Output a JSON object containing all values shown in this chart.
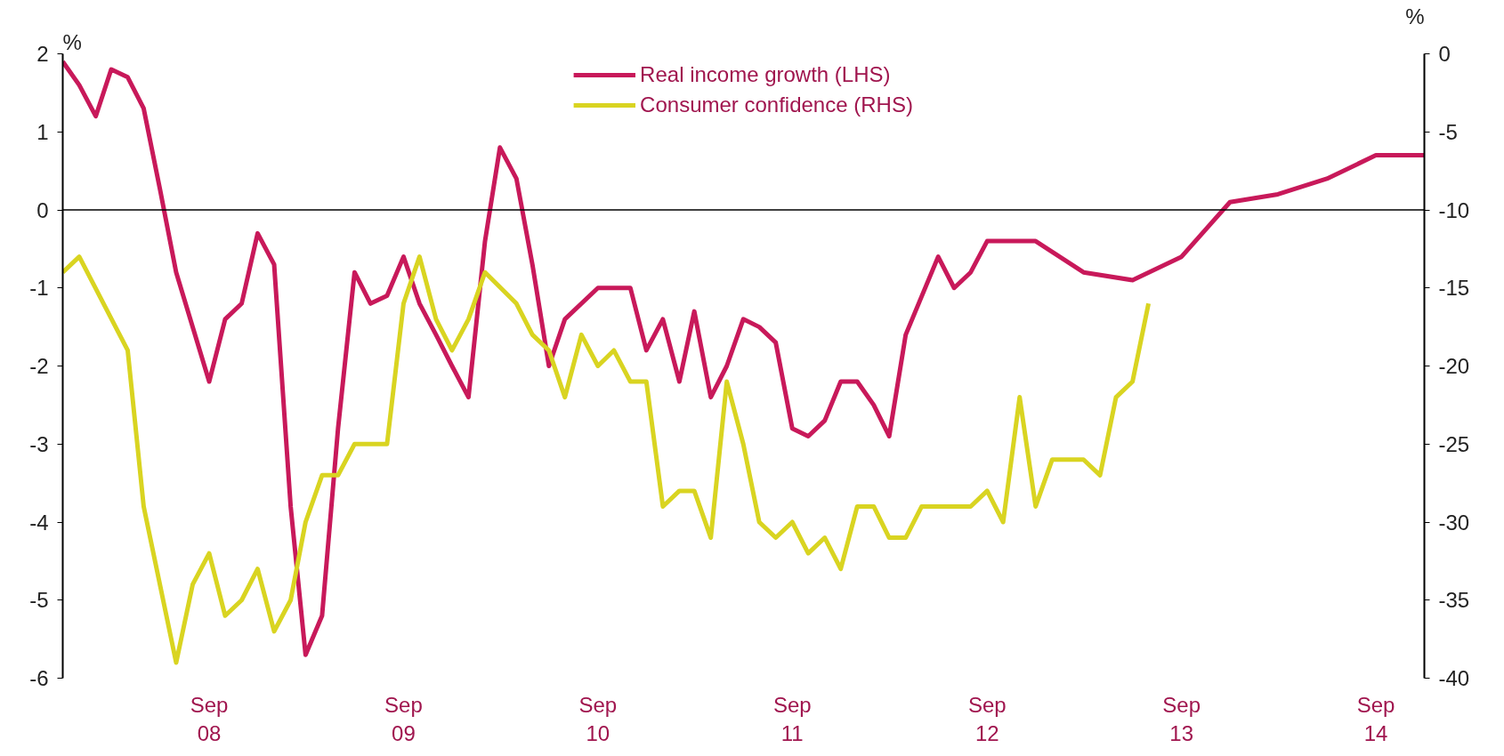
{
  "chart_data": {
    "type": "line",
    "ylabel": "%",
    "y2label": "%",
    "xlim": [
      "2007-12",
      "2014-12"
    ],
    "xticks": [
      {
        "value": "2008-09",
        "label": "Sep\n08"
      },
      {
        "value": "2009-09",
        "label": "Sep\n09"
      },
      {
        "value": "2010-09",
        "label": "Sep\n10"
      },
      {
        "value": "2011-09",
        "label": "Sep\n11"
      },
      {
        "value": "2012-09",
        "label": "Sep\n12"
      },
      {
        "value": "2013-09",
        "label": "Sep\n13"
      },
      {
        "value": "2014-09",
        "label": "Sep\n14"
      }
    ],
    "ylim": [
      -6,
      2
    ],
    "yticks": [
      -6,
      -5,
      -4,
      -3,
      -2,
      -1,
      0,
      1,
      2
    ],
    "y2lim": [
      -40,
      0
    ],
    "y2ticks": [
      -40,
      -35,
      -30,
      -25,
      -20,
      -15,
      -10,
      -5,
      0
    ],
    "grid": false,
    "legend": "top",
    "marker": "none",
    "line_style": "solid",
    "ref_lines": [
      {
        "axis": "y",
        "value": 0,
        "label": null,
        "color": "#000000"
      }
    ],
    "series": [
      {
        "name": "Real income growth (LHS)",
        "color": "#c8195a",
        "x": [
          "2007-12",
          "2008-01",
          "2008-02",
          "2008-03",
          "2008-04",
          "2008-05",
          "2008-06",
          "2008-07",
          "2008-09",
          "2008-10",
          "2008-11",
          "2008-12",
          "2009-01",
          "2009-02",
          "2009-03",
          "2009-04",
          "2009-05",
          "2009-06",
          "2009-07",
          "2009-08",
          "2009-09",
          "2009-10",
          "2009-11",
          "2009-12",
          "2010-01",
          "2010-02",
          "2010-03",
          "2010-04",
          "2010-05",
          "2010-06",
          "2010-07",
          "2010-09",
          "2010-11",
          "2010-12",
          "2011-01",
          "2011-02",
          "2011-03",
          "2011-04",
          "2011-05",
          "2011-06",
          "2011-07",
          "2011-08",
          "2011-09",
          "2011-10",
          "2011-11",
          "2011-12",
          "2012-01",
          "2012-02",
          "2012-03",
          "2012-04",
          "2012-06",
          "2012-07",
          "2012-08",
          "2012-09",
          "2012-12",
          "2013-03",
          "2013-06",
          "2013-09",
          "2013-12",
          "2014-03",
          "2014-06",
          "2014-09",
          "2014-12"
        ],
        "values": [
          1.9,
          1.6,
          1.2,
          1.8,
          1.7,
          1.3,
          0.25,
          -0.8,
          -2.2,
          -1.4,
          -1.2,
          -0.3,
          -0.7,
          -3.8,
          -5.7,
          -5.2,
          -2.8,
          -0.8,
          -1.2,
          -1.1,
          -0.6,
          -1.2,
          -1.6,
          -2.0,
          -2.4,
          -0.4,
          0.8,
          0.4,
          -0.7,
          -2.0,
          -1.4,
          -1.0,
          -1.0,
          -1.8,
          -1.4,
          -2.2,
          -1.3,
          -2.4,
          -2.0,
          -1.4,
          -1.5,
          -1.7,
          -2.8,
          -2.9,
          -2.7,
          -2.2,
          -2.2,
          -2.5,
          -2.9,
          -1.6,
          -0.6,
          -1.0,
          -0.8,
          -0.4,
          -0.4,
          -0.8,
          -0.9,
          -0.6,
          0.1,
          0.2,
          0.4,
          0.7,
          0.7
        ]
      },
      {
        "name": "Consumer confidence (RHS)",
        "color": "#d9d421",
        "axis": "y2",
        "x": [
          "2007-12",
          "2008-01",
          "2008-04",
          "2008-05",
          "2008-07",
          "2008-08",
          "2008-09",
          "2008-10",
          "2008-11",
          "2008-12",
          "2009-01",
          "2009-02",
          "2009-03",
          "2009-04",
          "2009-05",
          "2009-06",
          "2009-08",
          "2009-09",
          "2009-10",
          "2009-11",
          "2009-12",
          "2010-01",
          "2010-02",
          "2010-04",
          "2010-05",
          "2010-06",
          "2010-07",
          "2010-08",
          "2010-09",
          "2010-10",
          "2010-11",
          "2010-12",
          "2011-01",
          "2011-02",
          "2011-03",
          "2011-04",
          "2011-05",
          "2011-06",
          "2011-07",
          "2011-08",
          "2011-09",
          "2011-10",
          "2011-11",
          "2011-12",
          "2012-01",
          "2012-02",
          "2012-03",
          "2012-04",
          "2012-05",
          "2012-08",
          "2012-09",
          "2012-10",
          "2012-11",
          "2012-12",
          "2013-01",
          "2013-03",
          "2013-04",
          "2013-05",
          "2013-06",
          "2013-07"
        ],
        "values": [
          -14,
          -13,
          -19,
          -29,
          -39,
          -34,
          -32,
          -36,
          -35,
          -33,
          -37,
          -35,
          -30,
          -27,
          -27,
          -25,
          -25,
          -16,
          -13,
          -17,
          -19,
          -17,
          -14,
          -16,
          -18,
          -19,
          -22,
          -18,
          -20,
          -19,
          -21,
          -21,
          -29,
          -28,
          -28,
          -31,
          -21,
          -25,
          -30,
          -31,
          -30,
          -32,
          -31,
          -33,
          -29,
          -29,
          -31,
          -31,
          -29,
          -29,
          -28,
          -30,
          -22,
          -29,
          -26,
          -26,
          -27,
          -22,
          -21,
          -16
        ]
      }
    ]
  }
}
